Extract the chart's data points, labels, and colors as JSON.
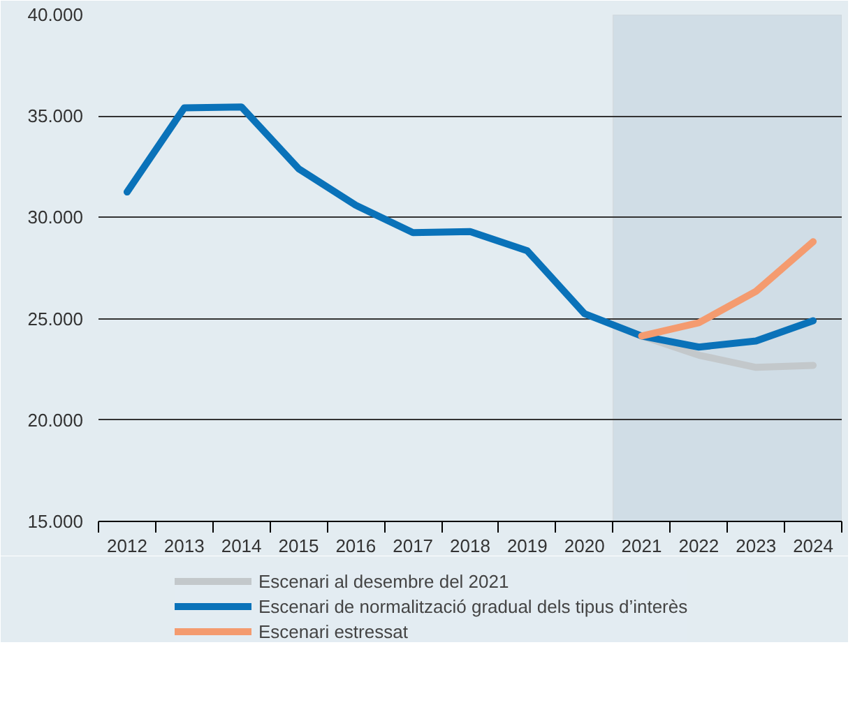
{
  "chart_data": {
    "type": "line",
    "x": [
      2012,
      2013,
      2014,
      2015,
      2016,
      2017,
      2018,
      2019,
      2020,
      2021,
      2022,
      2023,
      2024
    ],
    "series": [
      {
        "name": "Escenari al desembre del 2021",
        "color": "#c3c8cb",
        "x": [
          2021,
          2022,
          2023,
          2024
        ],
        "values": [
          24150,
          23200,
          22600,
          22700
        ]
      },
      {
        "name": "Escenari de normalització gradual dels tipus d’interès",
        "color": "#0a72b9",
        "values": [
          31250,
          35400,
          35450,
          32400,
          30600,
          29250,
          29300,
          28350,
          25250,
          24150,
          23600,
          23900,
          24900
        ]
      },
      {
        "name": "Escenari estressat",
        "color": "#f49b6f",
        "x": [
          2021,
          2022,
          2023,
          2024
        ],
        "values": [
          24150,
          24800,
          26350,
          28800
        ]
      }
    ],
    "xlim": [
      2011.5,
      2024.5
    ],
    "xticks": [
      2012,
      2013,
      2014,
      2015,
      2016,
      2017,
      2018,
      2019,
      2020,
      2021,
      2022,
      2023,
      2024
    ],
    "ylim": [
      15000,
      40000
    ],
    "yticks": [
      {
        "value": 15000,
        "label": "15.000"
      },
      {
        "value": 20000,
        "label": "20.000"
      },
      {
        "value": 25000,
        "label": "25.000"
      },
      {
        "value": 30000,
        "label": "30.000"
      },
      {
        "value": 35000,
        "label": "35.000"
      },
      {
        "value": 40000,
        "label": "40.000"
      }
    ],
    "bands": [
      {
        "axis": "x",
        "from": 2020.5,
        "to": 2024.5,
        "color": "#d0dde6"
      }
    ],
    "grid": "y",
    "legend": "bottom",
    "line_style": "solid",
    "marker": "none"
  }
}
